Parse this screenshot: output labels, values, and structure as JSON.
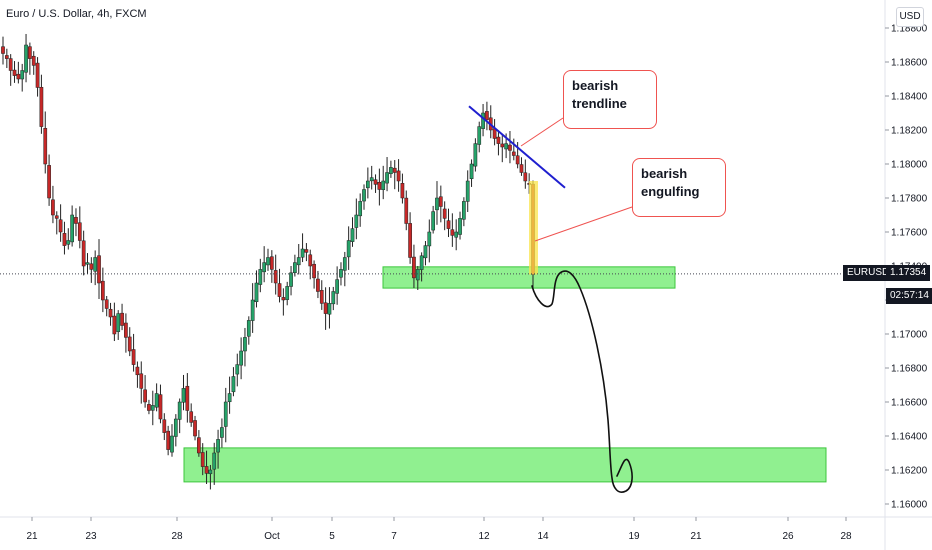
{
  "header": {
    "title": "Euro / U.S. Dollar, 4h, FXCM",
    "currency_button": "USD"
  },
  "colors": {
    "up": "#26a269",
    "down": "#c62828",
    "zone_fill": "#90f090",
    "zone_border": "#3cc63c",
    "trendline": "#1f1fcf",
    "callout_border": "#ef5350",
    "highlight": "#f9e44a"
  },
  "annotations": {
    "trendline_label_1": "bearish",
    "trendline_label_2": "trendline",
    "engulfing_label_1": "bearish",
    "engulfing_label_2": "engulfing"
  },
  "price_tags": {
    "symbol": "EURUSD",
    "price": "1.17354",
    "countdown": "02:57:14"
  },
  "chart_data": {
    "type": "candlestick",
    "ylim": [
      1.1588,
      1.1884
    ],
    "y_ticks": [
      "1.16000",
      "1.16200",
      "1.16400",
      "1.16600",
      "1.16800",
      "1.17000",
      "1.17200",
      "1.17400",
      "1.17600",
      "1.17800",
      "1.18000",
      "1.18200",
      "1.18400",
      "1.18600",
      "1.18800"
    ],
    "x_ticks": [
      "21",
      "23",
      "28",
      "Oct",
      "5",
      "7",
      "12",
      "14",
      "19",
      "21",
      "26",
      "28"
    ],
    "last_price": 1.17354,
    "close_path": [
      1.1865,
      1.1862,
      1.1855,
      1.1852,
      1.185,
      1.1855,
      1.187,
      1.1862,
      1.1858,
      1.1845,
      1.1822,
      1.18,
      1.178,
      1.177,
      1.1768,
      1.176,
      1.1752,
      1.1755,
      1.177,
      1.1765,
      1.1755,
      1.174,
      1.1742,
      1.1738,
      1.1745,
      1.173,
      1.172,
      1.1715,
      1.171,
      1.17,
      1.1712,
      1.1705,
      1.1698,
      1.169,
      1.1682,
      1.1676,
      1.1668,
      1.166,
      1.1655,
      1.1658,
      1.1665,
      1.165,
      1.1642,
      1.1632,
      1.164,
      1.165,
      1.166,
      1.1668,
      1.1655,
      1.1648,
      1.164,
      1.163,
      1.1622,
      1.1618,
      1.162,
      1.163,
      1.1638,
      1.1645,
      1.166,
      1.1665,
      1.1675,
      1.1682,
      1.169,
      1.1698,
      1.1708,
      1.172,
      1.173,
      1.1738,
      1.1742,
      1.1745,
      1.1738,
      1.173,
      1.1722,
      1.172,
      1.1728,
      1.1736,
      1.1742,
      1.1745,
      1.175,
      1.1748,
      1.174,
      1.1733,
      1.1725,
      1.1718,
      1.1712,
      1.1718,
      1.1725,
      1.1732,
      1.1738,
      1.1745,
      1.1755,
      1.1762,
      1.177,
      1.1778,
      1.1785,
      1.179,
      1.1792,
      1.1788,
      1.1785,
      1.179,
      1.1795,
      1.1798,
      1.1795,
      1.179,
      1.178,
      1.1765,
      1.1745,
      1.1733,
      1.1738,
      1.1746,
      1.1752,
      1.176,
      1.1772,
      1.178,
      1.1775,
      1.1768,
      1.1762,
      1.1758,
      1.176,
      1.1768,
      1.1778,
      1.179,
      1.18,
      1.1812,
      1.1822,
      1.183,
      1.1826,
      1.182,
      1.1815,
      1.1812,
      1.181,
      1.1812,
      1.1808,
      1.1805,
      1.18,
      1.1795,
      1.179,
      1.1788,
      1.1735
    ],
    "support_zones": [
      {
        "top": 1.17395,
        "bottom": 1.1727
      },
      {
        "top": 1.1633,
        "bottom": 1.1613
      }
    ],
    "trendline": {
      "from": 1.1834,
      "to": 1.1786
    }
  }
}
